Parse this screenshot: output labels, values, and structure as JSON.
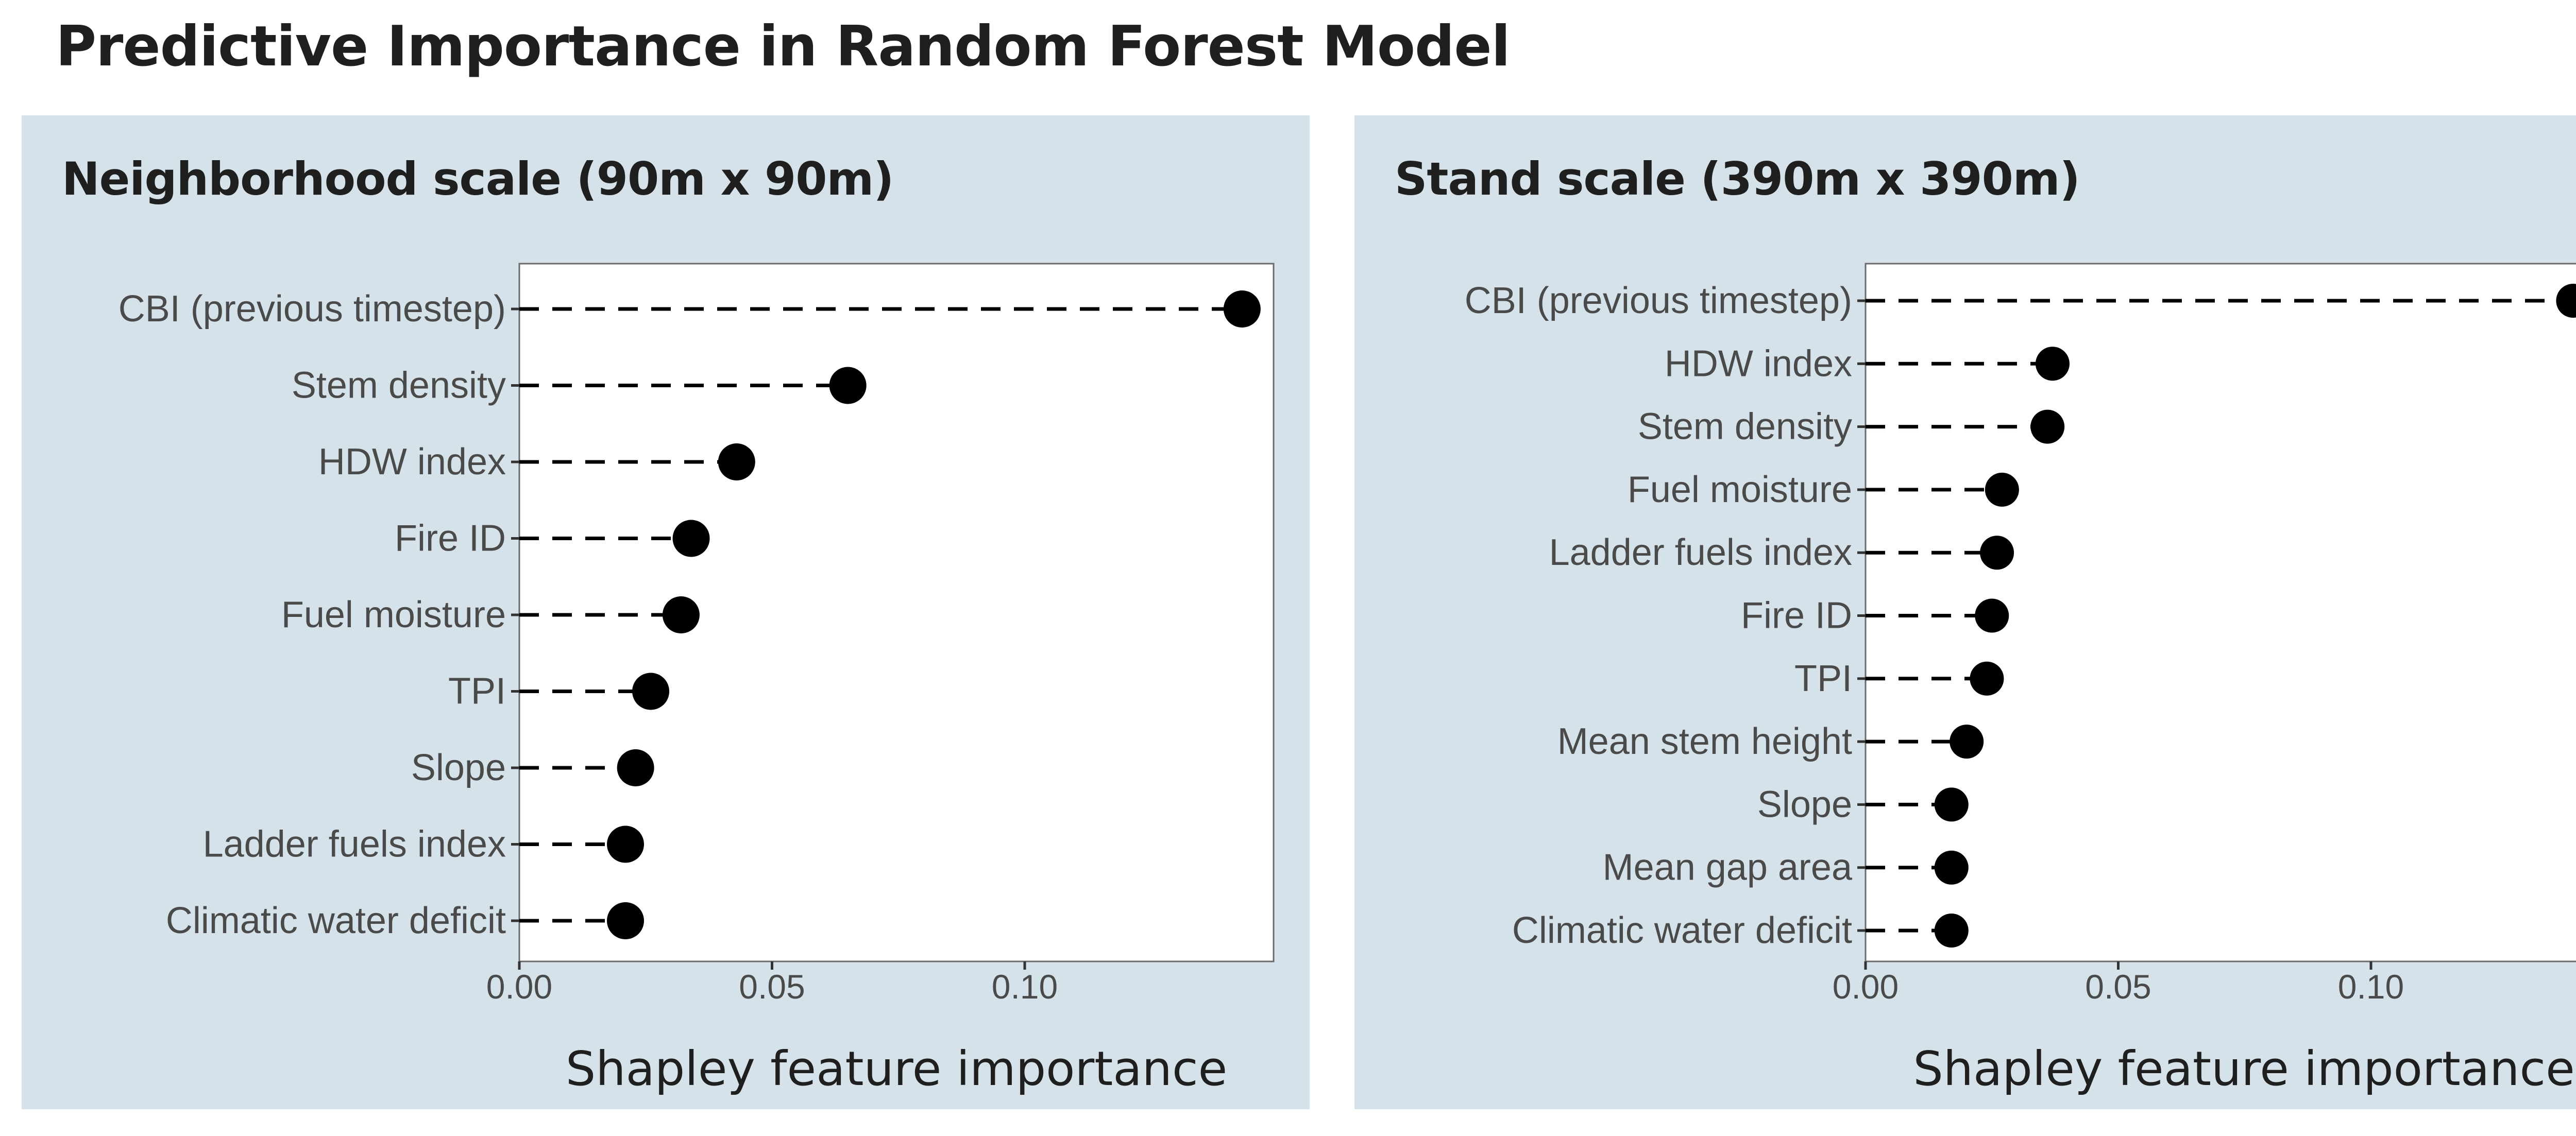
{
  "title": "Predictive Importance in Random Forest Model",
  "chart_data": [
    {
      "type": "scatter",
      "title": "Neighborhood scale (90m x 90m)",
      "xlabel": "Shapley feature importance",
      "ylabel": "",
      "xlim": [
        0,
        0.148
      ],
      "xticks": [
        0,
        0.05,
        0.1
      ],
      "xtick_labels": [
        "0.00",
        "0.05",
        "0.10"
      ],
      "grid": false,
      "categories": [
        "CBI (previous timestep)",
        "Stem density",
        "HDW index",
        "Fire ID",
        "Fuel moisture",
        "TPI",
        "Slope",
        "Ladder fuels index",
        "Climatic water deficit"
      ],
      "values": [
        0.143,
        0.065,
        0.043,
        0.034,
        0.032,
        0.026,
        0.023,
        0.021,
        0.021
      ]
    },
    {
      "type": "scatter",
      "title": "Stand scale (390m x 390m)",
      "xlabel": "Shapley feature importance",
      "ylabel": "",
      "xlim": [
        0,
        0.148
      ],
      "xticks": [
        0,
        0.05,
        0.1
      ],
      "xtick_labels": [
        "0.00",
        "0.05",
        "0.10"
      ],
      "grid": false,
      "categories": [
        "CBI (previous timestep)",
        "HDW index",
        "Stem density",
        "Fuel moisture",
        "Ladder fuels index",
        "Fire ID",
        "TPI",
        "Mean stem height",
        "Slope",
        "Mean gap area",
        "Climatic water deficit"
      ],
      "values": [
        0.14,
        0.037,
        0.036,
        0.027,
        0.026,
        0.025,
        0.024,
        0.02,
        0.017,
        0.017,
        0.017
      ]
    }
  ]
}
